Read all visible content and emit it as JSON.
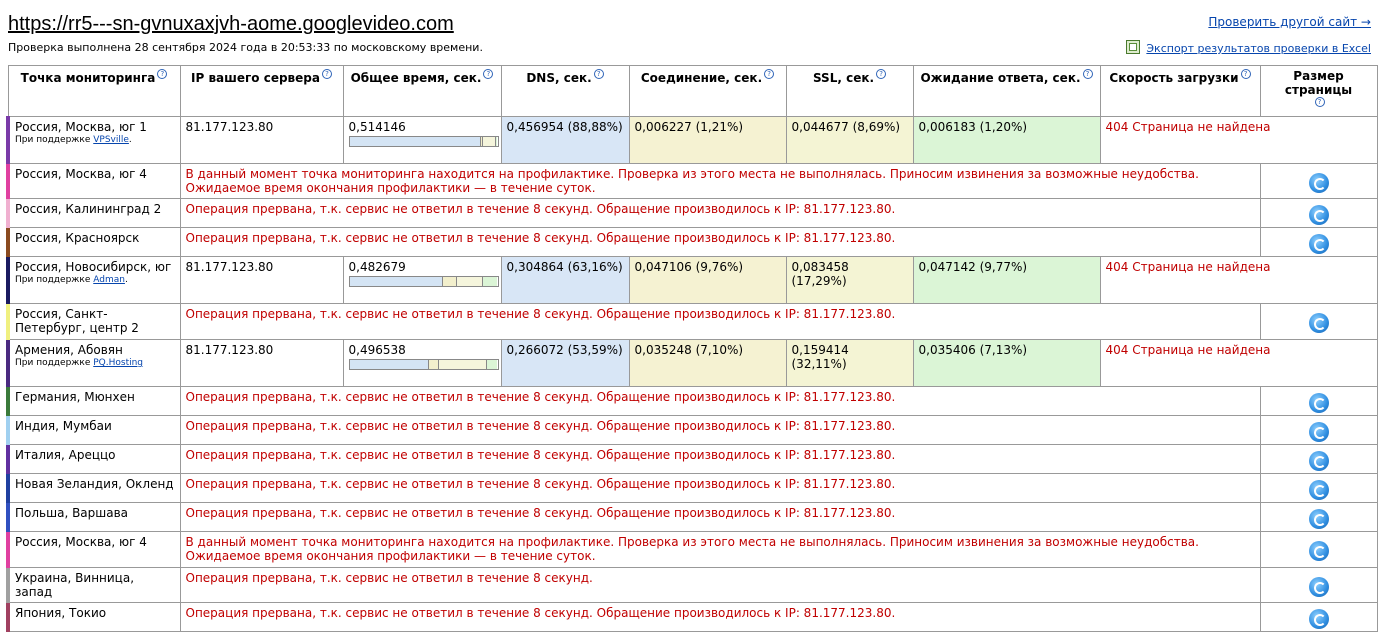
{
  "header": {
    "url": "https://rr5---sn-gvnuxaxjvh-aome.googlevideo.com",
    "subtitle": "Проверка выполнена 28 сентября 2024 года в 20:53:33 по московскому времени.",
    "recheck_link": "Проверить другой сайт →",
    "export_link": "Экспорт результатов проверки в Excel"
  },
  "table": {
    "headers": {
      "location": "Точка мониторинга",
      "ip": "IP вашего сервера",
      "total": "Общее время, сек.",
      "dns": "DNS, сек.",
      "conn": "Соединение, сек.",
      "ssl": "SSL, сек.",
      "wait": "Ожидание ответа, сек.",
      "speed": "Скорость загрузки",
      "size": "Размер страницы"
    },
    "help_glyph": "?",
    "rows": [
      {
        "location": "Россия, Москва, юг 1",
        "support_prefix": "При поддержке",
        "support": "VPSville",
        "support_suffix": ".",
        "ip": "81.177.123.80",
        "total": "0,514146",
        "dns": "0,456954 (88,88%)",
        "conn": "0,006227 (1,21%)",
        "ssl": "0,044677 (8,69%)",
        "wait": "0,006183 (1,20%)",
        "speed": "404 Страница не найдена",
        "bar": [
          88.88,
          1.21,
          8.69,
          1.2
        ],
        "color": "#7a3aa8"
      },
      {
        "location": "Россия, Москва, юг 4",
        "error": "В данный момент точка мониторинга находится на профилактике. Проверка из этого места не выполнялась. Приносим извинения за возможные неудобства. Ожидаемое время окончания профилактики — в течение суток.",
        "color": "#e040a0"
      },
      {
        "location": "Россия, Калининград 2",
        "error": "Операция прервана, т.к. сервис не ответил в течение 8 секунд. Обращение производилось к IP: 81.177.123.80.",
        "color": "#f0b0d0"
      },
      {
        "location": "Россия, Красноярск",
        "error": "Операция прервана, т.к. сервис не ответил в течение 8 секунд. Обращение производилось к IP: 81.177.123.80.",
        "color": "#8a4a20"
      },
      {
        "location": "Россия, Новосибирск, юг",
        "support_prefix": "При поддержке",
        "support": "Adman",
        "support_suffix": ".",
        "ip": "81.177.123.80",
        "total": "0,482679",
        "dns": "0,304864 (63,16%)",
        "conn": "0,047106 (9,76%)",
        "ssl": "0,083458 (17,29%)",
        "wait": "0,047142 (9,77%)",
        "speed": "404 Страница не найдена",
        "bar": [
          63.16,
          9.76,
          17.29,
          9.77
        ],
        "color": "#1a1a60"
      },
      {
        "location": "Россия, Санкт-Петербург, центр 2",
        "error": "Операция прервана, т.к. сервис не ответил в течение 8 секунд. Обращение производилось к IP: 81.177.123.80.",
        "color": "#f0f080"
      },
      {
        "location": "Армения, Абовян",
        "support_prefix": "При поддержке",
        "support": "PQ.Hosting",
        "support_suffix": "",
        "ip": "81.177.123.80",
        "total": "0,496538",
        "dns": "0,266072 (53,59%)",
        "conn": "0,035248 (7,10%)",
        "ssl": "0,159414 (32,11%)",
        "wait": "0,035406 (7,13%)",
        "speed": "404 Страница не найдена",
        "bar": [
          53.59,
          7.1,
          32.11,
          7.13
        ],
        "color": "#4a2a80"
      },
      {
        "location": "Германия, Мюнхен",
        "error": "Операция прервана, т.к. сервис не ответил в течение 8 секунд. Обращение производилось к IP: 81.177.123.80.",
        "color": "#3a7a3a"
      },
      {
        "location": "Индия, Мумбаи",
        "error": "Операция прервана, т.к. сервис не ответил в течение 8 секунд. Обращение производилось к IP: 81.177.123.80.",
        "color": "#a0d0f0"
      },
      {
        "location": "Италия, Ареццо",
        "error": "Операция прервана, т.к. сервис не ответил в течение 8 секунд. Обращение производилось к IP: 81.177.123.80.",
        "color": "#6030a0"
      },
      {
        "location": "Новая Зеландия, Окленд",
        "error": "Операция прервана, т.к. сервис не ответил в течение 8 секунд. Обращение производилось к IP: 81.177.123.80.",
        "color": "#2040a0"
      },
      {
        "location": "Польша, Варшава",
        "error": "Операция прервана, т.к. сервис не ответил в течение 8 секунд. Обращение производилось к IP: 81.177.123.80.",
        "color": "#3050c0"
      },
      {
        "location": "Россия, Москва, юг 4",
        "error": "В данный момент точка мониторинга находится на профилактике. Проверка из этого места не выполнялась. Приносим извинения за возможные неудобства. Ожидаемое время окончания профилактики — в течение суток.",
        "color": "#e040a0"
      },
      {
        "location": "Украина, Винница, запад",
        "error": "Операция прервана, т.к. сервис не ответил в течение 8 секунд.",
        "color": "#a0a0a0"
      },
      {
        "location": "Япония, Токио",
        "error": "Операция прервана, т.к. сервис не ответил в течение 8 секунд. Обращение производилось к IP: 81.177.123.80.",
        "color": "#a04060"
      }
    ]
  }
}
